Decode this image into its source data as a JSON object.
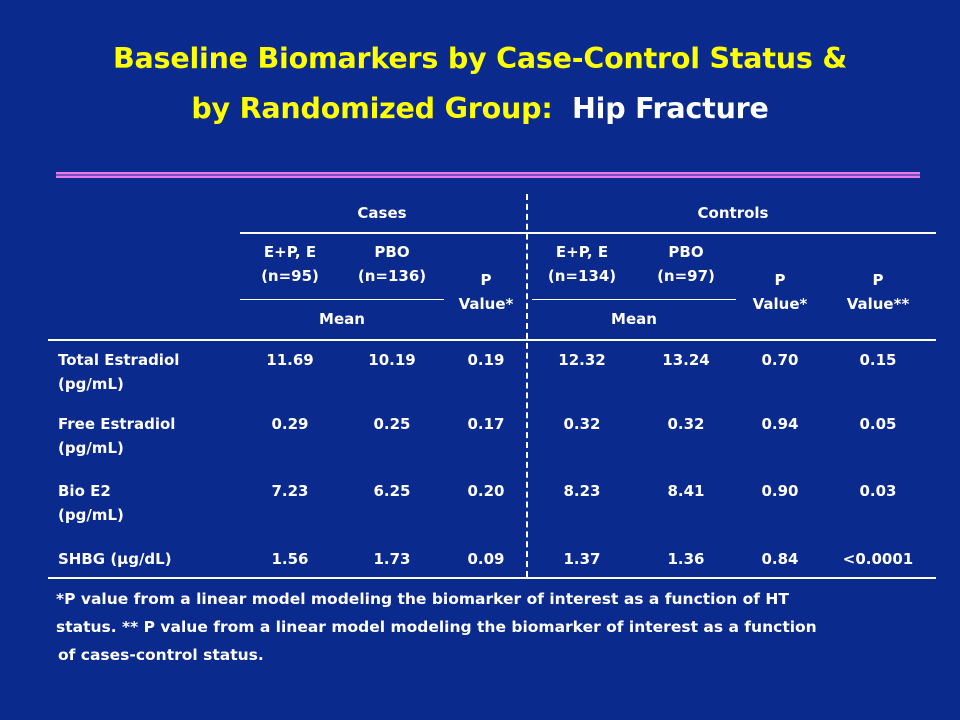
{
  "title": {
    "line1": "Baseline Biomarkers by Case-Control Status &",
    "line2_prefix": "by Randomized Group:",
    "line2_highlight": "Hip Fracture"
  },
  "table": {
    "group_headers": {
      "cases": "Cases",
      "controls": "Controls"
    },
    "cases_ep": [
      "E+P, E",
      "(n=95)"
    ],
    "cases_pbo": [
      "PBO",
      "(n=136)"
    ],
    "cases_p": [
      "P",
      "Value*"
    ],
    "controls_ep": [
      "E+P, E",
      "(n=134)"
    ],
    "controls_pbo": [
      "PBO",
      "(n=97)"
    ],
    "controls_p": [
      "P",
      "Value*"
    ],
    "controls_p2": [
      "P",
      "Value**"
    ],
    "mean_label": "Mean",
    "rows": [
      {
        "label": [
          "Total  Estradiol",
          "(pg/mL)"
        ],
        "values": [
          "11.69",
          "10.19",
          "0.19",
          "12.32",
          "13.24",
          "0.70",
          "0.15"
        ]
      },
      {
        "label": [
          "Free Estradiol",
          "(pg/mL)"
        ],
        "values": [
          "0.29",
          "0.25",
          "0.17",
          "0.32",
          "0.32",
          "0.94",
          "0.05"
        ]
      },
      {
        "label": [
          "Bio E2",
          "(pg/mL)"
        ],
        "values": [
          "7.23",
          "6.25",
          "0.20",
          "8.23",
          "8.41",
          "0.90",
          "0.03"
        ]
      },
      {
        "label": [
          "SHBG (µg/dL)"
        ],
        "values": [
          "1.56",
          "1.73",
          "0.09",
          "1.37",
          "1.36",
          "0.84",
          "<0.0001"
        ]
      }
    ]
  },
  "footnote": {
    "line1": "*P value from a linear model modeling the biomarker of interest as a function of HT",
    "line2": "status. ** P value from a linear model modeling the biomarker of interest as a function",
    "line3": "of  cases-control status."
  }
}
